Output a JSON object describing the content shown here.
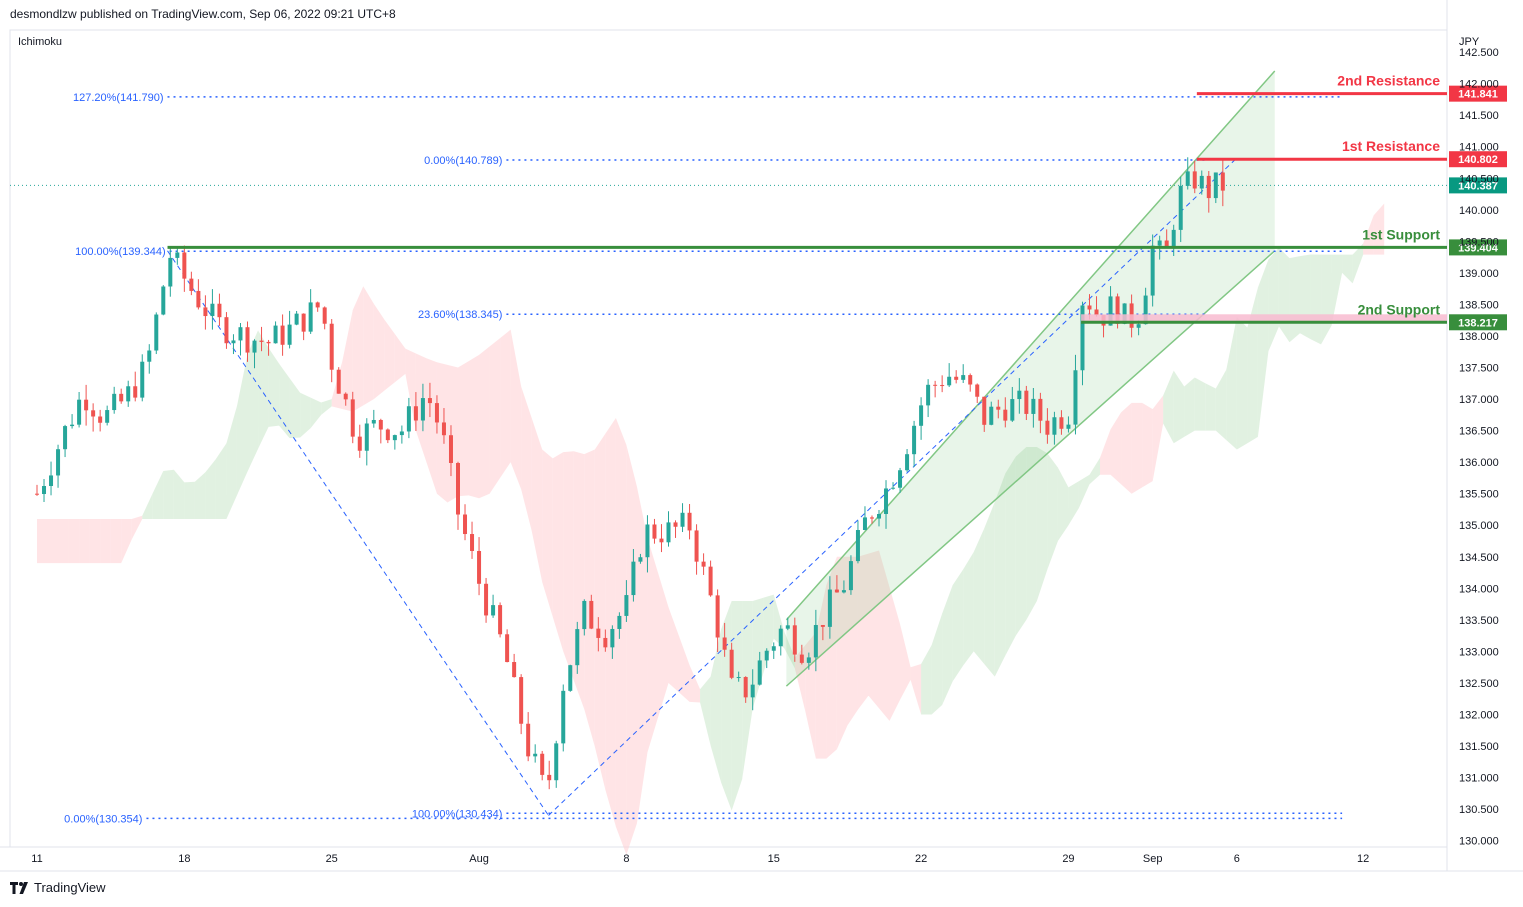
{
  "header": {
    "published": "desmondlzw published on TradingView.com, Sep 06, 2022 09:21 UTC+8"
  },
  "footer": {
    "brand": "TradingView",
    "logo_icon": "tradingview-logo-icon"
  },
  "chart_data": {
    "type": "candlestick",
    "indicator_label": "Ichimoku",
    "currency": "JPY",
    "colors": {
      "up": "#26a69a",
      "down": "#ef5350",
      "support": "#388e3c",
      "resistance": "#f23645",
      "fib": "#2962ff",
      "channel": "#81c784",
      "cloud_green": "#c8e6c9",
      "cloud_red": "#ffcdd2"
    },
    "y_ticks": [
      "142.500",
      "142.000",
      "141.500",
      "141.000",
      "140.500",
      "140.000",
      "139.500",
      "139.000",
      "138.500",
      "138.000",
      "137.500",
      "137.000",
      "136.500",
      "136.000",
      "135.500",
      "135.000",
      "134.500",
      "134.000",
      "133.500",
      "133.000",
      "132.500",
      "132.000",
      "131.500",
      "131.000",
      "130.500",
      "130.000"
    ],
    "ylim": [
      129.9,
      142.85
    ],
    "x_ticks": [
      {
        "label": "11",
        "day": 0
      },
      {
        "label": "18",
        "day": 7
      },
      {
        "label": "25",
        "day": 14
      },
      {
        "label": "Aug",
        "day": 21
      },
      {
        "label": "8",
        "day": 28
      },
      {
        "label": "15",
        "day": 35
      },
      {
        "label": "22",
        "day": 42
      },
      {
        "label": "29",
        "day": 49
      },
      {
        "label": "Sep",
        "day": 53
      },
      {
        "label": "6",
        "day": 57
      },
      {
        "label": "12",
        "day": 63
      }
    ],
    "levels": [
      {
        "name": "2nd Resistance",
        "value": 141.841,
        "price_label": "141.841",
        "role": "resistance"
      },
      {
        "name": "1st Resistance",
        "value": 140.802,
        "price_label": "140.802",
        "role": "resistance"
      },
      {
        "name": "1st Support",
        "value": 139.404,
        "price_label": "139.404",
        "role": "support"
      },
      {
        "name": "2nd Support",
        "value": 138.217,
        "price_label": "138.217",
        "role": "support"
      }
    ],
    "last_price": {
      "value": 140.387,
      "label": "140.387"
    },
    "fib_labels": [
      {
        "text": "127.20%(141.790)",
        "value": 141.79
      },
      {
        "text": "0.00%(140.789)",
        "value": 140.789
      },
      {
        "text": "100.00%(139.344)",
        "value": 139.344
      },
      {
        "text": "23.60%(138.345)",
        "value": 138.345
      },
      {
        "text": "100.00%(130.434)",
        "value": 130.434
      },
      {
        "text": "0.00%(130.354)",
        "value": 130.354
      }
    ],
    "close_path": [
      [
        0,
        135.5
      ],
      [
        1.2,
        136.4
      ],
      [
        2.2,
        137.1
      ],
      [
        3.2,
        136.7
      ],
      [
        4.2,
        137.0
      ],
      [
        5.2,
        137.5
      ],
      [
        6.3,
        139.3
      ],
      [
        7.2,
        138.8
      ],
      [
        8.5,
        138.2
      ],
      [
        9.8,
        138.0
      ],
      [
        11,
        137.9
      ],
      [
        12,
        138.1
      ],
      [
        13.5,
        138.5
      ],
      [
        14,
        137.6
      ],
      [
        15.2,
        136.4
      ],
      [
        16.2,
        136.6
      ],
      [
        17.3,
        136.5
      ],
      [
        18.5,
        137.1
      ],
      [
        19.2,
        136.5
      ],
      [
        20,
        135.2
      ],
      [
        21,
        134.1
      ],
      [
        22.2,
        133.0
      ],
      [
        23.3,
        131.5
      ],
      [
        24.2,
        130.7
      ],
      [
        25,
        132.5
      ],
      [
        26,
        133.6
      ],
      [
        27,
        133.3
      ],
      [
        28,
        133.7
      ],
      [
        28.8,
        134.9
      ],
      [
        30,
        134.9
      ],
      [
        31,
        135.0
      ],
      [
        32.2,
        133.6
      ],
      [
        33,
        132.4
      ],
      [
        33.8,
        132.4
      ],
      [
        34.6,
        133.0
      ],
      [
        35.5,
        133.4
      ],
      [
        36.5,
        133.0
      ],
      [
        37.4,
        133.6
      ],
      [
        38.4,
        134.1
      ],
      [
        39.4,
        135.1
      ],
      [
        40.4,
        135.6
      ],
      [
        41.2,
        136.2
      ],
      [
        42.2,
        137.1
      ],
      [
        43.2,
        137.4
      ],
      [
        44.2,
        137.2
      ],
      [
        45,
        136.7
      ],
      [
        46,
        136.9
      ],
      [
        47,
        136.9
      ],
      [
        48,
        136.6
      ],
      [
        49,
        136.8
      ],
      [
        49.7,
        138.7
      ],
      [
        50.5,
        138.3
      ],
      [
        51.2,
        138.5
      ],
      [
        51.8,
        138.2
      ],
      [
        52.4,
        138.4
      ],
      [
        53.0,
        139.4
      ],
      [
        53.6,
        139.2
      ],
      [
        54.2,
        140.2
      ],
      [
        55.0,
        140.5
      ],
      [
        55.6,
        140.3
      ],
      [
        56.2,
        140.4
      ],
      [
        56.6,
        140.39
      ]
    ]
  }
}
